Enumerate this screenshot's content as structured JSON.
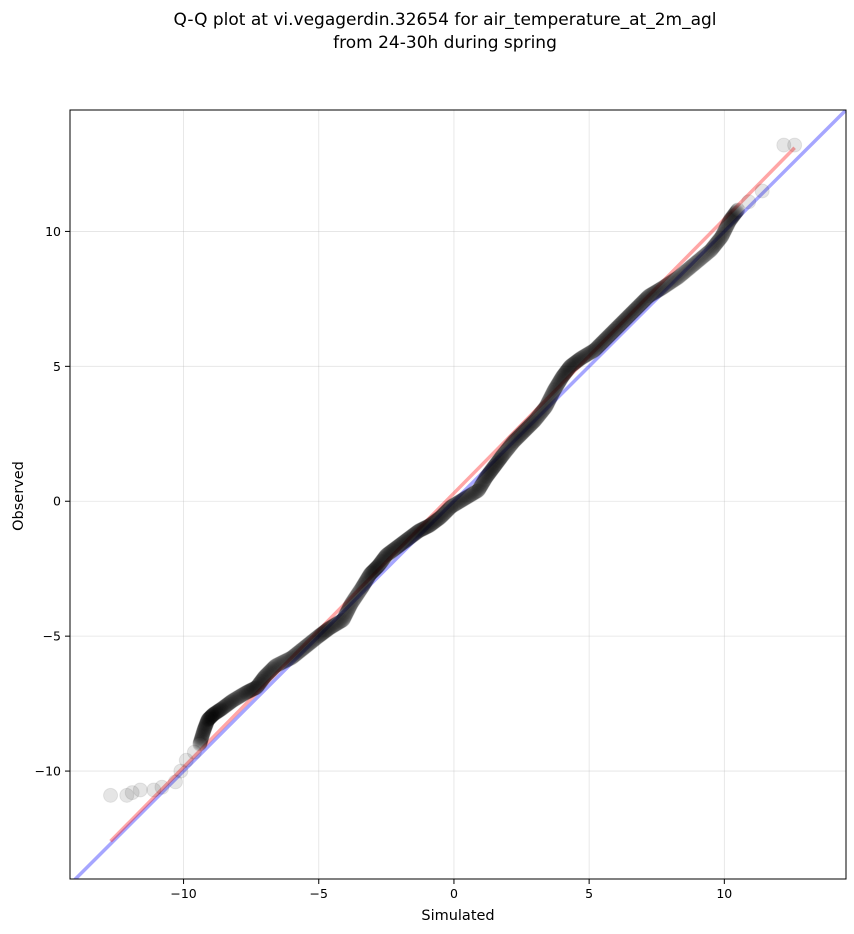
{
  "chart_data": {
    "type": "scatter",
    "title": "Q-Q plot at vi.vegagerdin.32654 for air_temperature_at_2m_agl",
    "subtitle": "from 24-30h during spring",
    "xlabel": "Simulated",
    "ylabel": "Observed",
    "xlim": [
      -14.2,
      14.5
    ],
    "ylim": [
      -14.0,
      14.5
    ],
    "xticks": [
      -10,
      -5,
      0,
      5,
      10
    ],
    "yticks": [
      -10,
      -5,
      0,
      5,
      10
    ],
    "xtick_labels": [
      "−10",
      "−5",
      "0",
      "5",
      "10"
    ],
    "ytick_labels": [
      "−10",
      "−5",
      "0",
      "5",
      "10"
    ],
    "grid": true,
    "quantile_points": [
      [
        -12.7,
        -10.9
      ],
      [
        -12.1,
        -10.9
      ],
      [
        -11.9,
        -10.8
      ],
      [
        -11.6,
        -10.7
      ],
      [
        -11.1,
        -10.7
      ],
      [
        -10.8,
        -10.6
      ],
      [
        -10.3,
        -10.4
      ],
      [
        -10.1,
        -10.0
      ],
      [
        -9.9,
        -9.6
      ],
      [
        -9.6,
        -9.3
      ],
      [
        -9.4,
        -9.0
      ],
      [
        -9.25,
        -8.5
      ],
      [
        -9.1,
        -8.1
      ],
      [
        -8.9,
        -7.9
      ],
      [
        -8.6,
        -7.7
      ],
      [
        -8.2,
        -7.4
      ],
      [
        -7.7,
        -7.1
      ],
      [
        -7.3,
        -6.9
      ],
      [
        -7.0,
        -6.5
      ],
      [
        -6.6,
        -6.1
      ],
      [
        -6.0,
        -5.8
      ],
      [
        -5.5,
        -5.4
      ],
      [
        -5.0,
        -5.0
      ],
      [
        -4.6,
        -4.7
      ],
      [
        -4.1,
        -4.4
      ],
      [
        -3.8,
        -3.8
      ],
      [
        -3.4,
        -3.2
      ],
      [
        -3.1,
        -2.7
      ],
      [
        -2.8,
        -2.4
      ],
      [
        -2.5,
        -2.0
      ],
      [
        -2.1,
        -1.7
      ],
      [
        -1.7,
        -1.4
      ],
      [
        -1.3,
        -1.1
      ],
      [
        -0.9,
        -0.9
      ],
      [
        -0.5,
        -0.6
      ],
      [
        -0.1,
        -0.2
      ],
      [
        0.4,
        0.1
      ],
      [
        0.9,
        0.4
      ],
      [
        1.2,
        0.9
      ],
      [
        1.5,
        1.3
      ],
      [
        1.8,
        1.7
      ],
      [
        2.2,
        2.2
      ],
      [
        2.6,
        2.6
      ],
      [
        3.0,
        3.0
      ],
      [
        3.4,
        3.5
      ],
      [
        3.7,
        4.1
      ],
      [
        4.0,
        4.6
      ],
      [
        4.3,
        5.0
      ],
      [
        4.7,
        5.3
      ],
      [
        5.2,
        5.6
      ],
      [
        5.6,
        6.0
      ],
      [
        6.0,
        6.4
      ],
      [
        6.4,
        6.8
      ],
      [
        6.8,
        7.2
      ],
      [
        7.2,
        7.6
      ],
      [
        7.7,
        7.9
      ],
      [
        8.3,
        8.3
      ],
      [
        8.9,
        8.8
      ],
      [
        9.5,
        9.3
      ],
      [
        9.9,
        9.8
      ],
      [
        10.2,
        10.4
      ],
      [
        10.5,
        10.8
      ],
      [
        10.9,
        11.1
      ],
      [
        11.4,
        11.5
      ],
      [
        12.2,
        13.2
      ],
      [
        12.6,
        13.2
      ]
    ],
    "reference_line_x_equals_y": {
      "color": "#0000ff",
      "alpha": 0.35
    },
    "fit_line": {
      "color": "#ff0000",
      "alpha": 0.35,
      "x1": -12.7,
      "y1": -12.6,
      "x2": 12.6,
      "y2": 13.1
    },
    "point_color": "#000000",
    "point_alpha": 0.1
  }
}
